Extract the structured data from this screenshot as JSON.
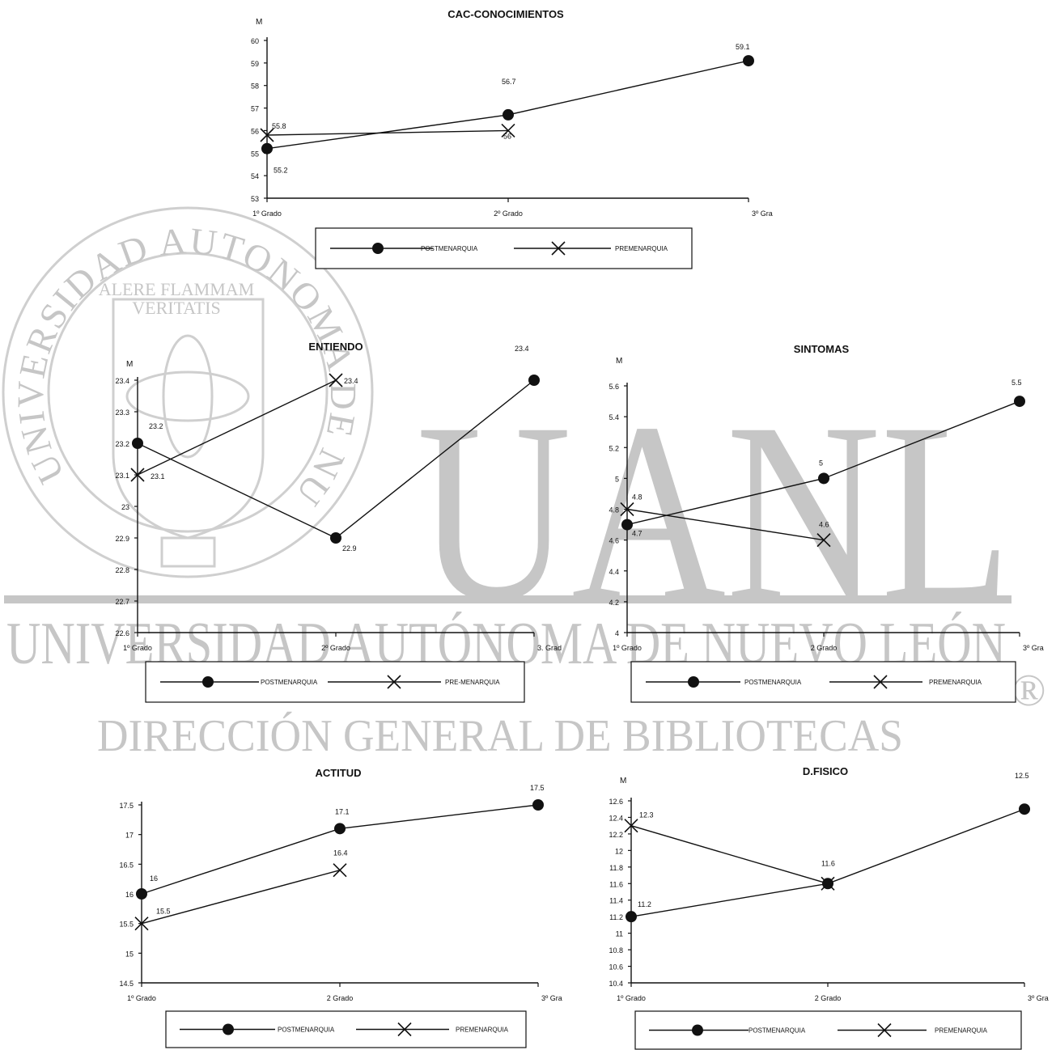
{
  "watermark": {
    "seal_text": "UNIVERSIDAD AUTONOMA DE NUEVO LEON",
    "motto_line1": "ALERE FLAMMAM",
    "motto_line2": "VERITATIS",
    "letters": "UANL",
    "university_line": "UNIVERSIDAD AUTÓNOMA DE NUEVO LEÓN",
    "registered_mark": "®",
    "direction_line": "DIRECCIÓN GENERAL DE BIBLIOTECAS",
    "color": "#c6c6c6"
  },
  "chart_data": [
    {
      "type": "line",
      "title": "CAC-CONOCIMIENTOS",
      "ylabel": "M",
      "ylim": [
        53,
        60
      ],
      "yticks": [
        "53",
        "54",
        "55",
        "56",
        "57",
        "58",
        "59",
        "60"
      ],
      "categories": [
        "1º Grado",
        "2º Grado",
        "3º Gra"
      ],
      "series": [
        {
          "name": "POSTMENARQUIA",
          "marker": "dot",
          "values": [
            55.2,
            56.7,
            59.1
          ],
          "labels": [
            "55.2",
            "56.7",
            "59.1"
          ]
        },
        {
          "name": "PREMENARQUIA",
          "marker": "x",
          "values": [
            55.8,
            56,
            null
          ],
          "labels": [
            "55.8",
            "56",
            ""
          ]
        }
      ]
    },
    {
      "type": "line",
      "title": "ENTIENDO",
      "ylabel": "M",
      "ylim": [
        22.6,
        23.4
      ],
      "yticks": [
        "22.6",
        "22.7",
        "22.8",
        "22.9",
        "23",
        "23.1",
        "23.2",
        "23.3",
        "23.4"
      ],
      "categories": [
        "1º Grado",
        "2º Grado",
        "3. Grad"
      ],
      "series": [
        {
          "name": "POSTMENARQUIA",
          "marker": "dot",
          "values": [
            23.2,
            22.9,
            23.4
          ],
          "labels": [
            "23.2",
            "22.9",
            "23.4"
          ]
        },
        {
          "name": "PRE-MENARQUIA",
          "marker": "x",
          "values": [
            23.1,
            23.4,
            null
          ],
          "labels": [
            "23.1",
            "23.4",
            ""
          ]
        }
      ]
    },
    {
      "type": "line",
      "title": "SINTOMAS",
      "ylabel": "M",
      "ylim": [
        4,
        5.6
      ],
      "yticks": [
        "4",
        "4.2",
        "4.4",
        "4.6",
        "4.8",
        "5",
        "5.2",
        "5.4",
        "5.6"
      ],
      "categories": [
        "1º Grado",
        "2 Grado",
        "3º Gra"
      ],
      "series": [
        {
          "name": "POSTMENARQUIA",
          "marker": "dot",
          "values": [
            4.7,
            5,
            5.5
          ],
          "labels": [
            "4.7",
            "5",
            "5.5"
          ]
        },
        {
          "name": "PREMENARQUIA",
          "marker": "x",
          "values": [
            4.8,
            4.6,
            null
          ],
          "labels": [
            "4.8",
            "4.6",
            ""
          ]
        }
      ]
    },
    {
      "type": "line",
      "title": "ACTITUD",
      "ylabel": "",
      "ylim": [
        14.5,
        17.5
      ],
      "yticks": [
        "14.5",
        "15",
        "15.5",
        "16",
        "16.5",
        "17",
        "17.5"
      ],
      "categories": [
        "1º Grado",
        "2 Grado",
        "3º Gra"
      ],
      "series": [
        {
          "name": "POSTMENARQUIA",
          "marker": "dot",
          "values": [
            16,
            17.1,
            17.5
          ],
          "labels": [
            "16",
            "17.1",
            "17.5"
          ]
        },
        {
          "name": "PREMENARQUIA",
          "marker": "x",
          "values": [
            15.5,
            16.4,
            null
          ],
          "labels": [
            "15.5",
            "16.4",
            ""
          ]
        }
      ]
    },
    {
      "type": "line",
      "title": "D.FISICO",
      "ylabel": "M",
      "ylim": [
        10.4,
        12.6
      ],
      "yticks": [
        "10.4",
        "10.6",
        "10.8",
        "11",
        "11.2",
        "11.4",
        "11.6",
        "11.8",
        "12",
        "12.2",
        "12.4",
        "12.6"
      ],
      "categories": [
        "1º Grado",
        "2 Grado",
        "3º Gra"
      ],
      "series": [
        {
          "name": "POSTMENARQUIA",
          "marker": "dot",
          "values": [
            11.2,
            11.6,
            12.5
          ],
          "labels": [
            "11.2",
            "",
            "12.5"
          ]
        },
        {
          "name": "PREMENARQUIA",
          "marker": "x",
          "values": [
            12.3,
            11.6,
            null
          ],
          "labels": [
            "12.3",
            "11.6",
            ""
          ]
        }
      ]
    }
  ]
}
